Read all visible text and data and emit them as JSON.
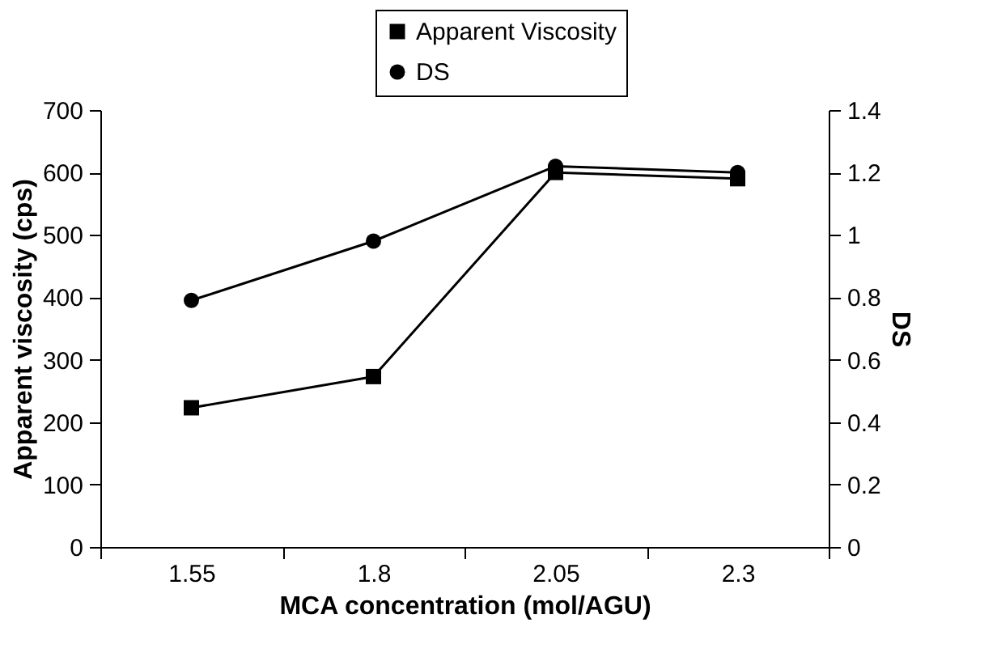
{
  "chart_data": {
    "type": "line",
    "xlabel": "MCA concentration (mol/AGU)",
    "ylabel": "Apparent viscosity (cps)",
    "y2label": "DS",
    "categories": [
      "1.55",
      "1.8",
      "2.05",
      "2.3"
    ],
    "series": [
      {
        "name": "Apparent Viscosity",
        "color": "#000000",
        "marker": "square",
        "values": [
          223,
          273,
          600,
          590
        ]
      },
      {
        "name": "DS",
        "color": "#000000",
        "marker": "circle",
        "axis": "y2",
        "values": [
          0.79,
          0.98,
          1.22,
          1.2
        ]
      }
    ],
    "ylim": [
      0,
      700
    ],
    "yticks": [
      0,
      100,
      200,
      300,
      400,
      500,
      600,
      700
    ],
    "y2lim": [
      0,
      1.4
    ],
    "y2ticks": [
      {
        "value": 0,
        "label": "0"
      },
      0.2,
      0.4,
      0.6,
      0.8,
      {
        "value": 1,
        "label": "1"
      },
      1.2,
      1.4
    ],
    "legend": "top right",
    "grid": false
  }
}
